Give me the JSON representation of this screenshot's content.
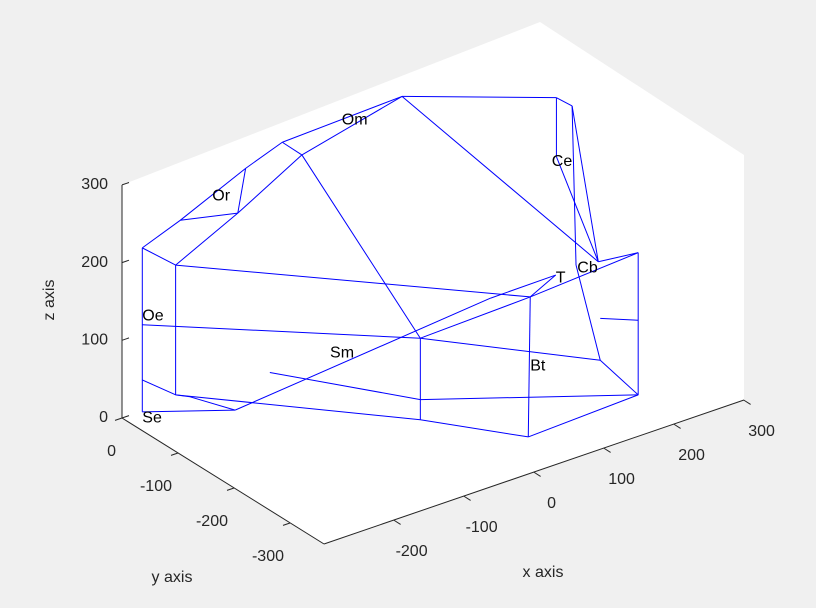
{
  "chart_data": {
    "type": "wireframe3d",
    "xlabel": "x axis",
    "ylabel": "y axis",
    "zlabel": "z axis",
    "xlim": [
      -300,
      300
    ],
    "ylim": [
      -360,
      0
    ],
    "zlim": [
      0,
      300
    ],
    "xticks": [
      -200,
      -100,
      0,
      100,
      200,
      300
    ],
    "yticks": [
      0,
      -100,
      -200,
      -300
    ],
    "zticks": [
      0,
      100,
      200,
      300
    ],
    "color": "#0000ff",
    "x": [
      -271,
      -271,
      -271,
      -237,
      -237,
      -232,
      -173,
      -165,
      -127,
      -107,
      -4,
      155,
      171,
      155,
      175,
      198,
      239,
      239,
      239,
      126,
      128,
      200,
      15,
      15,
      15,
      -176,
      -222,
      -140,
      87,
      200,
      154,
      -271
    ],
    "y": [
      0,
      0,
      0,
      -17,
      -17,
      -19,
      -48,
      -52,
      -70,
      -80,
      -130,
      -207,
      -215,
      -207,
      -217,
      -228,
      -248,
      -248,
      -248,
      -193,
      -194,
      -229,
      -139,
      -139,
      -139,
      -47,
      -24,
      -64,
      -174,
      -229,
      -207,
      0
    ],
    "z": [
      -1,
      40,
      210,
      185,
      18,
      242,
      246,
      303,
      333,
      315,
      381,
      365,
      353,
      289,
      148,
      150,
      158,
      71,
      -25,
      -69,
      111,
      23,
      68,
      -37,
      -11,
      -7,
      14,
      38,
      113,
      77,
      137,
      111
    ],
    "edges": [
      [
        2,
        5
      ],
      [
        5,
        7
      ],
      [
        7,
        8
      ],
      [
        8,
        10
      ],
      [
        10,
        11
      ],
      [
        11,
        12
      ],
      [
        11,
        13
      ],
      [
        13,
        15
      ],
      [
        12,
        14
      ],
      [
        12,
        15
      ],
      [
        3,
        6
      ],
      [
        6,
        9
      ],
      [
        9,
        10
      ],
      [
        5,
        6
      ],
      [
        7,
        6
      ],
      [
        8,
        9
      ],
      [
        2,
        3
      ],
      [
        2,
        1
      ],
      [
        1,
        0
      ],
      [
        3,
        4
      ],
      [
        4,
        1
      ],
      [
        3,
        20
      ],
      [
        9,
        22
      ],
      [
        10,
        15
      ],
      [
        20,
        16
      ],
      [
        15,
        16
      ],
      [
        16,
        18
      ],
      [
        20,
        19
      ],
      [
        19,
        18
      ],
      [
        29,
        17
      ],
      [
        21,
        18
      ],
      [
        14,
        21
      ],
      [
        22,
        23
      ],
      [
        23,
        19
      ],
      [
        24,
        18
      ],
      [
        31,
        22
      ],
      [
        22,
        20
      ],
      [
        20,
        30
      ],
      [
        22,
        21
      ],
      [
        0,
        25
      ],
      [
        26,
        25
      ],
      [
        4,
        26
      ],
      [
        25,
        28
      ],
      [
        28,
        30
      ],
      [
        27,
        24
      ],
      [
        4,
        23
      ]
    ],
    "landmarks": {
      "names": [
        "Se",
        "Oe",
        "Or",
        "Om",
        "Ce",
        "Cb",
        "T",
        "Bt",
        "Sm"
      ],
      "x": [
        -271,
        -271,
        -199,
        -66,
        150,
        176,
        154,
        128,
        -78
      ],
      "y": [
        0,
        0,
        -35,
        -100,
        -205,
        -218,
        -207,
        -194,
        -94
      ],
      "z": [
        -9,
        122,
        270,
        356,
        283,
        144,
        133,
        22,
        57
      ]
    }
  }
}
